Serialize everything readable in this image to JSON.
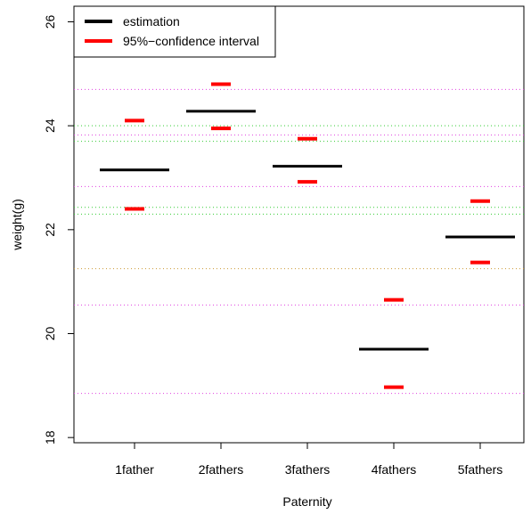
{
  "chart_data": {
    "type": "scatter",
    "title": "",
    "xlabel": "Paternity",
    "ylabel": "weight(g)",
    "categories": [
      "1father",
      "2fathers",
      "3fathers",
      "4fathers",
      "5fathers"
    ],
    "ylim": [
      17.9,
      26.3
    ],
    "yticks": [
      "18",
      "20",
      "22",
      "24",
      "26"
    ],
    "estimation": [
      23.15,
      24.28,
      23.22,
      19.7,
      21.86
    ],
    "ci_upper": [
      24.1,
      24.8,
      23.75,
      20.65,
      22.55
    ],
    "ci_lower": [
      22.4,
      23.95,
      22.92,
      18.97,
      21.37
    ],
    "reference_lines": [
      {
        "y": 24.7,
        "color": "#e040e0"
      },
      {
        "y": 24.0,
        "color": "#33cc33"
      },
      {
        "y": 23.82,
        "color": "#e040e0"
      },
      {
        "y": 23.7,
        "color": "#33cc33"
      },
      {
        "y": 22.83,
        "color": "#e040e0"
      },
      {
        "y": 22.43,
        "color": "#33cc33"
      },
      {
        "y": 22.3,
        "color": "#33cc33"
      },
      {
        "y": 21.25,
        "color": "#cc9933"
      },
      {
        "y": 20.55,
        "color": "#e040e0"
      },
      {
        "y": 18.85,
        "color": "#e040e0"
      }
    ],
    "legend": {
      "position": "top-left",
      "entries": [
        {
          "label": "estimation",
          "color": "#000000"
        },
        {
          "label": "95%−confidence interval",
          "color": "#ff0000"
        }
      ]
    },
    "colors": {
      "estimation": "#000000",
      "ci": "#ff0000"
    },
    "grid": false
  }
}
